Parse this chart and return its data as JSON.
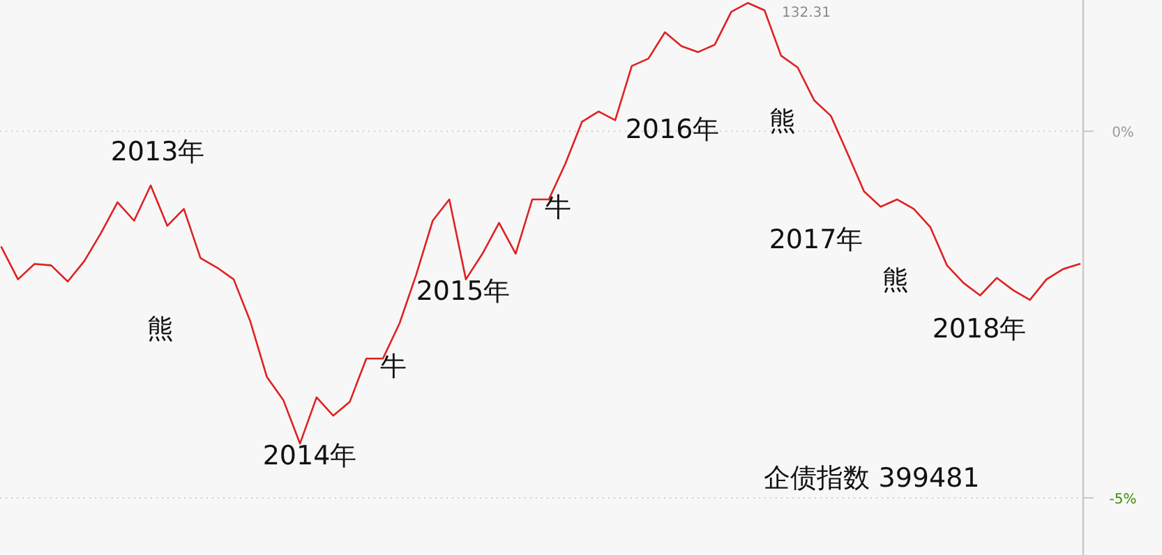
{
  "chart_data": {
    "type": "line",
    "title": "企债指数 399481",
    "categories": [
      null,
      null,
      null,
      null,
      null,
      null,
      null,
      null,
      null,
      null,
      null,
      null,
      null,
      null,
      null,
      null,
      null,
      null,
      null,
      null,
      null,
      null,
      null,
      null,
      null,
      null,
      null,
      null,
      null,
      null,
      null,
      null,
      null,
      null,
      null,
      null,
      null,
      null,
      null,
      null,
      null,
      null,
      null,
      null,
      null,
      null,
      null,
      null,
      null,
      null,
      null,
      null,
      null,
      null,
      null,
      null,
      null,
      null,
      null,
      null,
      null,
      null,
      null,
      null,
      null,
      null
    ],
    "series": [
      {
        "color": "#e02020",
        "values": [
          -1.58,
          -2.02,
          -1.81,
          -1.83,
          -2.05,
          -1.77,
          -1.39,
          -0.97,
          -1.22,
          -0.74,
          -1.29,
          -1.06,
          -1.73,
          -1.86,
          -2.02,
          -2.59,
          -3.35,
          -3.67,
          -4.26,
          -3.63,
          -3.88,
          -3.69,
          -3.1,
          -3.1,
          -2.62,
          -1.96,
          -1.22,
          -0.93,
          -2.02,
          -1.67,
          -1.25,
          -1.67,
          -0.93,
          -0.93,
          -0.44,
          0.13,
          0.27,
          0.15,
          0.89,
          0.99,
          1.35,
          1.16,
          1.08,
          1.18,
          1.63,
          1.75,
          1.65,
          1.03,
          0.87,
          0.42,
          0.21,
          -0.3,
          -0.82,
          -1.03,
          -0.93,
          -1.06,
          -1.31,
          -1.83,
          -2.07,
          -2.24,
          -2.0,
          -2.17,
          -2.3,
          -2.02,
          -1.88,
          -1.81
        ]
      }
    ],
    "ylim": [
      -5.78,
      1.79
    ],
    "yticks": [
      {
        "value": 0,
        "label": "0%"
      },
      {
        "value": -5,
        "label": "-5%"
      }
    ],
    "tick_labels": "y",
    "grid": "y",
    "marker": "none",
    "line_style": "solid",
    "annotations": [
      "2013年",
      "熊",
      "2014年",
      "牛",
      "2015年",
      "牛",
      "2016年",
      "熊",
      "2017年",
      "熊",
      "2018年",
      "132.31"
    ]
  }
}
